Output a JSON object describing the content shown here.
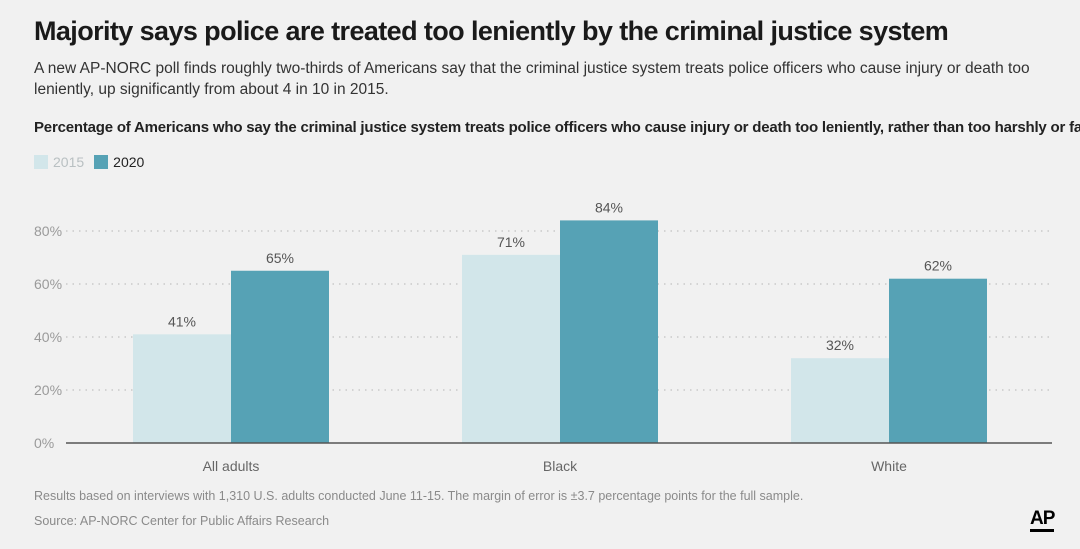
{
  "header": {
    "title": "Majority says police are treated too leniently by the criminal justice system",
    "subtitle": "A new AP-NORC poll finds roughly two-thirds of Americans say that the criminal justice system treats police officers who cause injury or death too leniently, up significantly from about 4 in 10 in 2015.",
    "question": "Percentage of Americans who say the criminal justice system treats police officers who cause injury or death too leniently, rather than too harshly or fairly:"
  },
  "colors": {
    "s2015": "#d2e6ea",
    "s2020": "#56a2b5",
    "axis": "#555555",
    "grid": "#b5b5b5",
    "tick_text": "#9a9a9a",
    "label_text": "#555555"
  },
  "chart_data": {
    "type": "bar",
    "categories": [
      "All adults",
      "Black",
      "White"
    ],
    "series": [
      {
        "name": "2015",
        "values": [
          41,
          71,
          32
        ],
        "labels": [
          "41%",
          "71%",
          "32%"
        ]
      },
      {
        "name": "2020",
        "values": [
          65,
          84,
          62
        ],
        "labels": [
          "65%",
          "84%",
          "62%"
        ]
      }
    ],
    "ylim": [
      0,
      80
    ],
    "yticks": [
      0,
      20,
      40,
      60,
      80
    ],
    "ytick_labels": [
      "0%",
      "20%",
      "40%",
      "60%",
      "80%"
    ],
    "grid": true,
    "legend": "top-left"
  },
  "footer": {
    "note": "Results based on interviews with 1,310 U.S. adults conducted June 11-15. The margin of error is ±3.7 percentage points for the full sample.",
    "source": "Source: AP-NORC Center for Public Affairs Research",
    "logo": "AP"
  }
}
